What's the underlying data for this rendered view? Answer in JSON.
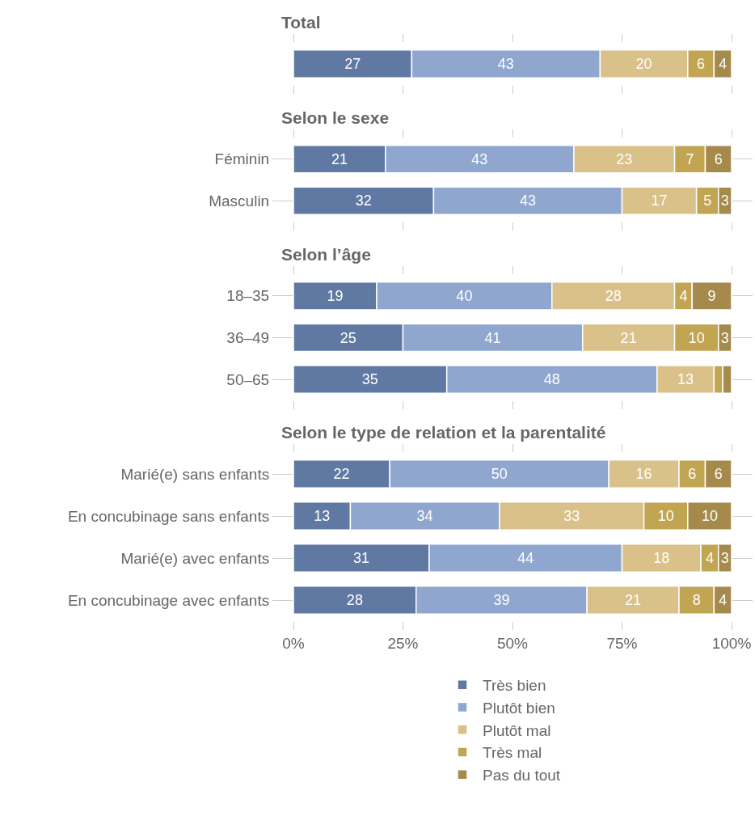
{
  "chart_data": [
    {
      "type": "bar",
      "title": "Total",
      "orientation": "horizontal",
      "stacked": true,
      "tick_labels": "y",
      "categories": [
        null
      ],
      "xlim": [
        0,
        100
      ],
      "xticks": [
        {
          "value": 0,
          "label": null
        },
        {
          "value": 25,
          "label": null
        },
        {
          "value": 50,
          "label": null
        },
        {
          "value": 75,
          "label": null
        },
        {
          "value": 100,
          "label": null
        }
      ],
      "data_labels": true,
      "series": [
        {
          "color": "#6079a3",
          "values": [
            27
          ]
        },
        {
          "color": "#8fa6cf",
          "values": [
            43
          ]
        },
        {
          "color": "#d9c189",
          "values": [
            20
          ]
        },
        {
          "color": "#c2a553",
          "values": [
            6
          ]
        },
        {
          "color": "#a68a4c",
          "values": [
            4
          ]
        }
      ]
    },
    {
      "type": "bar",
      "title": "Selon le sexe",
      "orientation": "horizontal",
      "stacked": true,
      "tick_labels": "y",
      "categories": [
        "Féminin",
        "Masculin"
      ],
      "xlim": [
        0,
        100
      ],
      "xticks": [
        {
          "value": 0,
          "label": null
        },
        {
          "value": 25,
          "label": null
        },
        {
          "value": 50,
          "label": null
        },
        {
          "value": 75,
          "label": null
        },
        {
          "value": 100,
          "label": null
        }
      ],
      "data_labels": true,
      "series": [
        {
          "color": "#6079a3",
          "values": [
            21,
            32
          ]
        },
        {
          "color": "#8fa6cf",
          "values": [
            43,
            43
          ]
        },
        {
          "color": "#d9c189",
          "values": [
            23,
            17
          ]
        },
        {
          "color": "#c2a553",
          "values": [
            7,
            5
          ]
        },
        {
          "color": "#a68a4c",
          "values": [
            6,
            3
          ]
        }
      ]
    },
    {
      "type": "bar",
      "title": "Selon l’âge",
      "orientation": "horizontal",
      "stacked": true,
      "tick_labels": "y",
      "categories": [
        "18–35",
        "36–49",
        "50–65"
      ],
      "xlim": [
        0,
        100
      ],
      "xticks": [
        {
          "value": 0,
          "label": null
        },
        {
          "value": 25,
          "label": null
        },
        {
          "value": 50,
          "label": null
        },
        {
          "value": 75,
          "label": null
        },
        {
          "value": 100,
          "label": null
        }
      ],
      "series": [
        {
          "color": "#6079a3",
          "values": [
            19,
            25,
            35
          ],
          "value_labels": [
            "19",
            "25",
            "35"
          ]
        },
        {
          "color": "#8fa6cf",
          "values": [
            40,
            41,
            48
          ],
          "value_labels": [
            "40",
            "41",
            "48"
          ]
        },
        {
          "color": "#d9c189",
          "values": [
            28,
            21,
            13
          ],
          "value_labels": [
            "28",
            "21",
            "13"
          ]
        },
        {
          "color": "#c2a553",
          "values": [
            4,
            10,
            2
          ],
          "value_labels": [
            "4",
            "10",
            null
          ]
        },
        {
          "color": "#a68a4c",
          "values": [
            9,
            3,
            2
          ],
          "value_labels": [
            "9",
            "3",
            null
          ]
        }
      ]
    },
    {
      "type": "bar",
      "title": "Selon le type de relation et la parentalité",
      "orientation": "horizontal",
      "stacked": true,
      "legend": "bottom",
      "categories": [
        "Marié(e) sans enfants",
        "En concubinage sans enfants",
        "Marié(e) avec enfants",
        "En concubinage avec enfants"
      ],
      "xlim": [
        0,
        100
      ],
      "xticks": [
        {
          "value": 0,
          "label": "0%"
        },
        {
          "value": 25,
          "label": "25%"
        },
        {
          "value": 50,
          "label": "50%"
        },
        {
          "value": 75,
          "label": "75%"
        },
        {
          "value": 100,
          "label": "100%"
        }
      ],
      "data_labels": true,
      "series": [
        {
          "name": "Très bien",
          "color": "#6079a3",
          "values": [
            22,
            13,
            31,
            28
          ]
        },
        {
          "name": "Plutôt bien",
          "color": "#8fa6cf",
          "values": [
            50,
            34,
            44,
            39
          ]
        },
        {
          "name": "Plutôt mal",
          "color": "#d9c189",
          "values": [
            16,
            33,
            18,
            21
          ]
        },
        {
          "name": "Très mal",
          "color": "#c2a553",
          "values": [
            6,
            10,
            4,
            8
          ]
        },
        {
          "name": "Pas du tout",
          "color": "#a68a4c",
          "values": [
            6,
            10,
            3,
            4
          ]
        }
      ]
    }
  ]
}
